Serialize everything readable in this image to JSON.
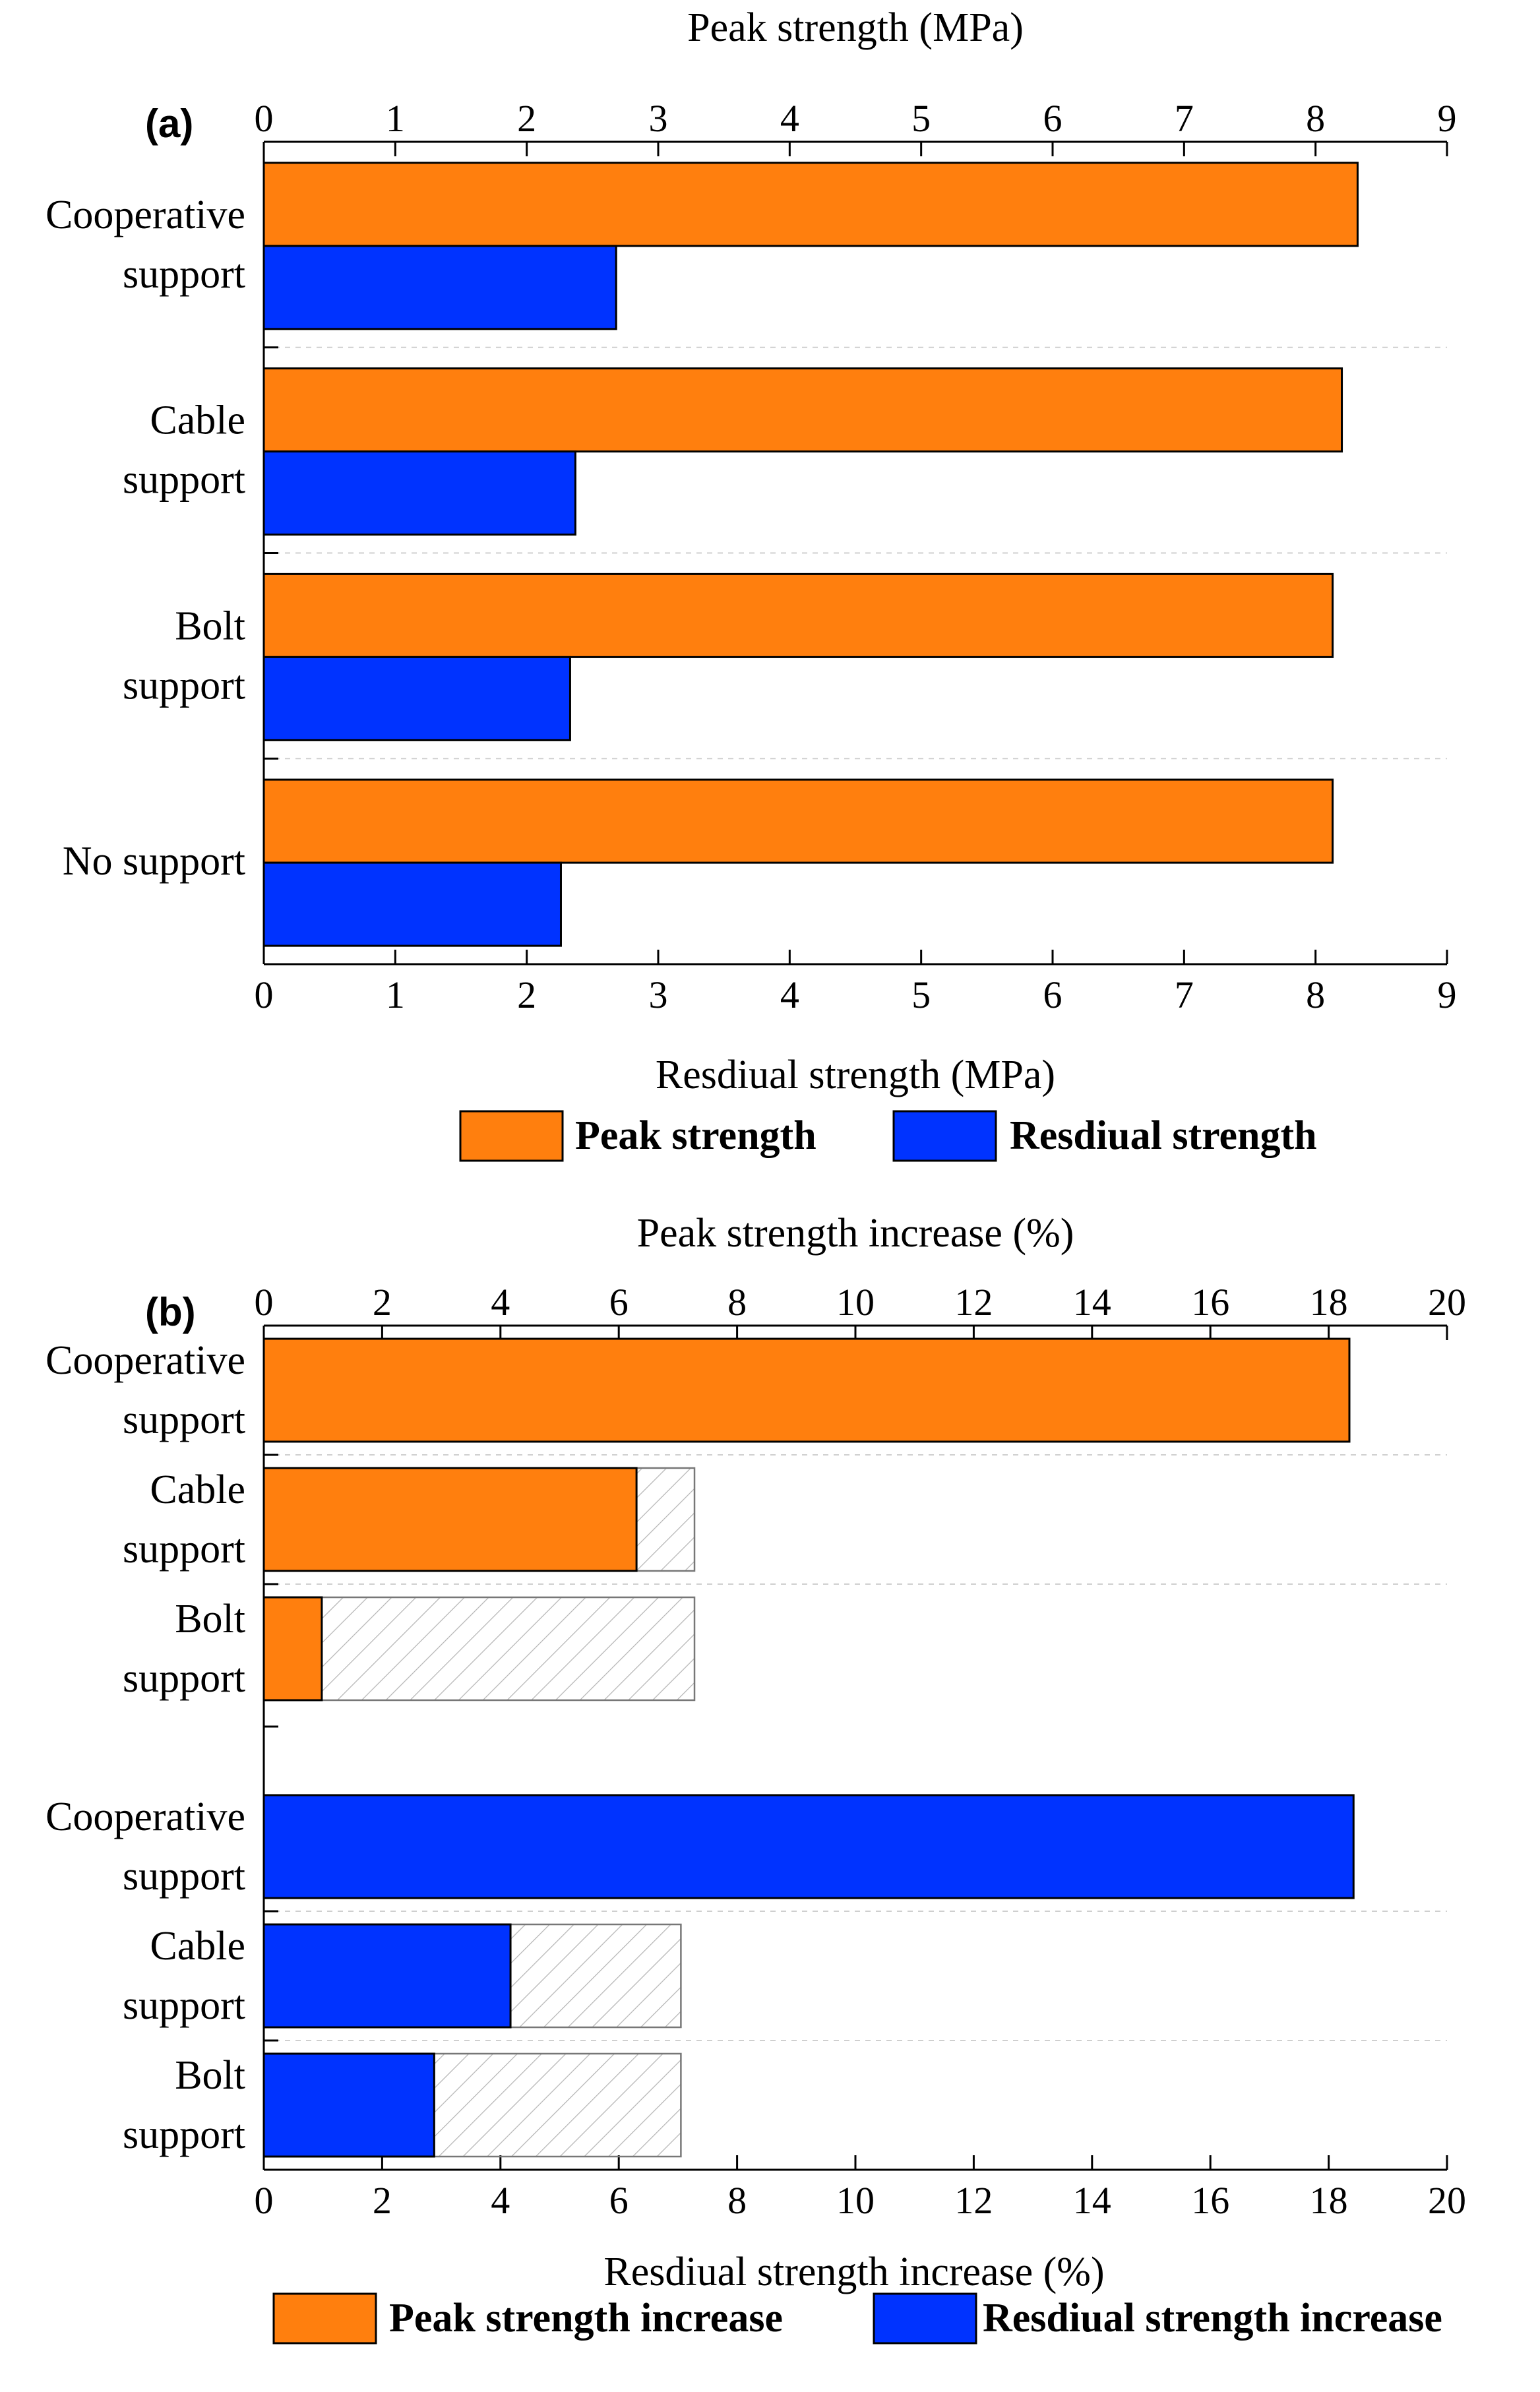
{
  "chart_data": [
    {
      "type": "bar",
      "orientation": "horizontal",
      "panel_label": "(a)",
      "top_axis_title": "Peak strength (MPa)",
      "bottom_axis_title": "Resdiual strength (MPa)",
      "xlim": [
        0,
        9
      ],
      "ticks": [
        "0",
        "1",
        "2",
        "3",
        "4",
        "5",
        "6",
        "7",
        "8",
        "9"
      ],
      "grid": "dashed horizontal separators",
      "categories": [
        [
          "Cooperative",
          "support"
        ],
        [
          "Cable",
          "support"
        ],
        [
          "Bolt",
          "support"
        ],
        [
          "No support"
        ]
      ],
      "series": [
        {
          "name": "Peak strength",
          "color": "#ff7f0e",
          "values": [
            8.32,
            8.2,
            8.13,
            8.13
          ]
        },
        {
          "name": "Resdiual strength",
          "color": "#0033ff",
          "values": [
            2.68,
            2.37,
            2.33,
            2.26
          ]
        }
      ],
      "legend": {
        "position": "bottom",
        "entries": [
          "Peak strength",
          "Resdiual strength"
        ]
      }
    },
    {
      "type": "bar",
      "orientation": "horizontal",
      "panel_label": "(b)",
      "top_axis_title": "Peak strength increase (%)",
      "bottom_axis_title": "Resdiual strength increase (%)",
      "xlim": [
        0,
        20
      ],
      "ticks": [
        "0",
        "2",
        "4",
        "6",
        "8",
        "10",
        "12",
        "14",
        "16",
        "18",
        "20"
      ],
      "grid": "dashed horizontal separators",
      "groups": [
        {
          "series": "Peak strength increase",
          "color": "#ff7f0e",
          "categories": [
            [
              "Cooperative",
              "support"
            ],
            [
              "Cable",
              "support"
            ],
            [
              "Bolt",
              "support"
            ]
          ],
          "values": [
            18.35,
            6.3,
            0.98
          ],
          "hatched_extent": [
            null,
            7.28,
            7.28
          ]
        },
        {
          "series": "Resdiual strength increase",
          "color": "#0033ff",
          "categories": [
            [
              "Cooperative",
              "support"
            ],
            [
              "Cable",
              "support"
            ],
            [
              "Bolt",
              "support"
            ]
          ],
          "values": [
            18.42,
            4.17,
            2.88
          ],
          "hatched_extent": [
            null,
            7.05,
            7.05
          ]
        }
      ],
      "legend": {
        "position": "bottom",
        "entries": [
          "Peak strength increase",
          "Resdiual strength increase"
        ]
      }
    }
  ]
}
